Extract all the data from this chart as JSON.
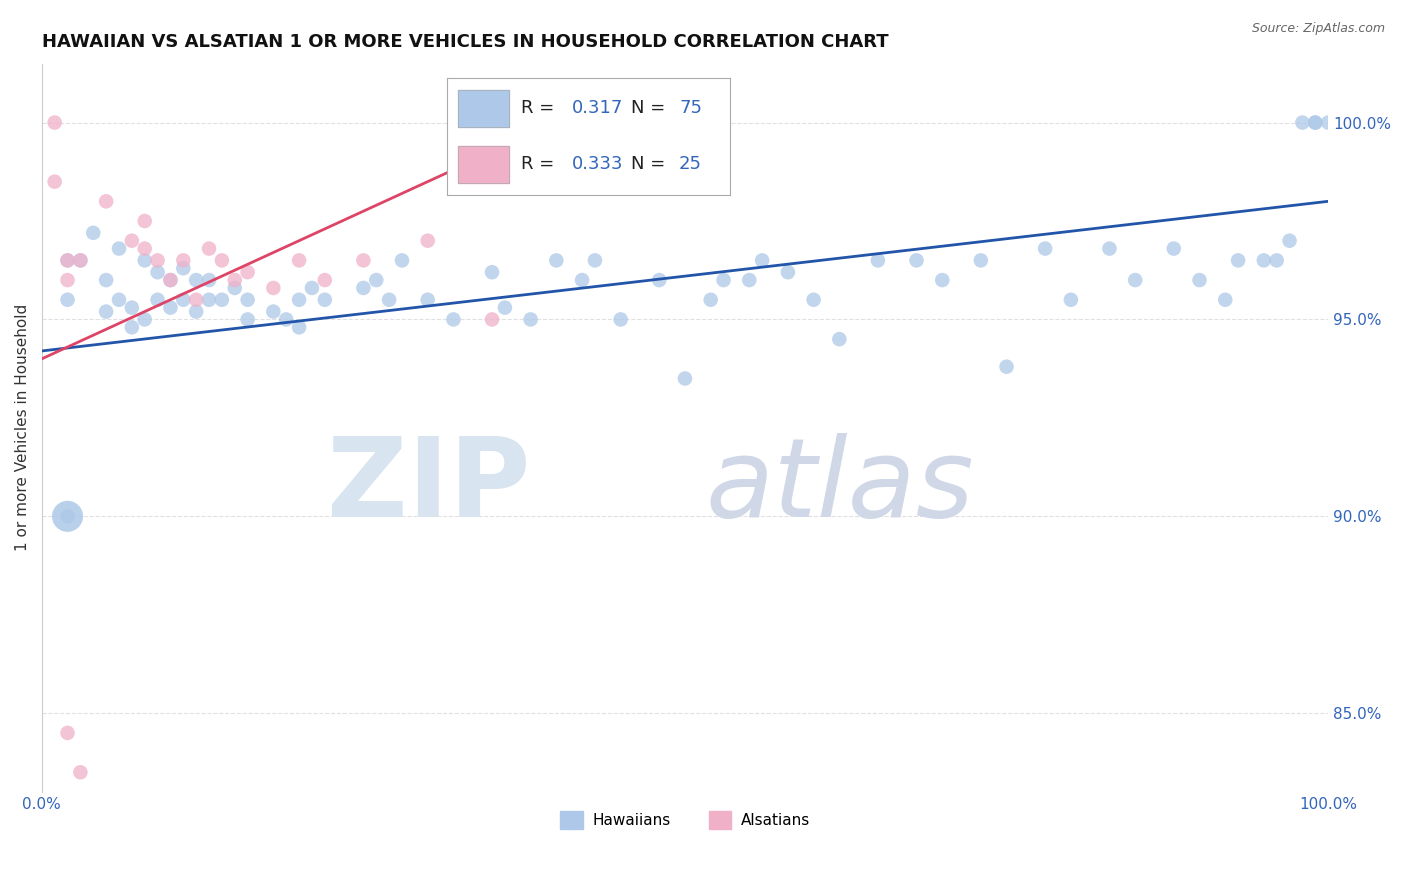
{
  "title": "HAWAIIAN VS ALSATIAN 1 OR MORE VEHICLES IN HOUSEHOLD CORRELATION CHART",
  "source": "Source: ZipAtlas.com",
  "ylabel": "1 or more Vehicles in Household",
  "xlim": [
    0,
    100
  ],
  "ylim": [
    83,
    101.5
  ],
  "yticks": [
    85.0,
    90.0,
    95.0,
    100.0
  ],
  "xticks": [
    0,
    100
  ],
  "hawaiian_color": "#adc8e8",
  "alsatian_color": "#f0b0c8",
  "hawaiian_line_color": "#2255aa",
  "alsatian_line_color": "#dd4466",
  "background_color": "#ffffff",
  "grid_color": "#e0e0e0",
  "title_fontsize": 13,
  "axis_label_fontsize": 11,
  "tick_fontsize": 11,
  "legend_fontsize": 13,
  "hawaiian_points_x": [
    2,
    2,
    2,
    3,
    4,
    5,
    5,
    6,
    6,
    7,
    7,
    8,
    8,
    9,
    9,
    10,
    10,
    11,
    11,
    12,
    12,
    13,
    13,
    14,
    15,
    16,
    16,
    18,
    19,
    20,
    20,
    21,
    22,
    25,
    26,
    27,
    28,
    30,
    32,
    35,
    36,
    38,
    40,
    42,
    43,
    45,
    48,
    50,
    52,
    53,
    55,
    56,
    58,
    60,
    62,
    65,
    68,
    70,
    73,
    75,
    78,
    80,
    83,
    85,
    88,
    90,
    92,
    93,
    95,
    96,
    97,
    98,
    99,
    99,
    100
  ],
  "hawaiian_points_y": [
    90.0,
    95.5,
    96.5,
    96.5,
    97.2,
    96.0,
    95.2,
    96.8,
    95.5,
    95.3,
    94.8,
    96.5,
    95.0,
    96.2,
    95.5,
    96.0,
    95.3,
    96.3,
    95.5,
    96.0,
    95.2,
    96.0,
    95.5,
    95.5,
    95.8,
    95.5,
    95.0,
    95.2,
    95.0,
    95.5,
    94.8,
    95.8,
    95.5,
    95.8,
    96.0,
    95.5,
    96.5,
    95.5,
    95.0,
    96.2,
    95.3,
    95.0,
    96.5,
    96.0,
    96.5,
    95.0,
    96.0,
    93.5,
    95.5,
    96.0,
    96.0,
    96.5,
    96.2,
    95.5,
    94.5,
    96.5,
    96.5,
    96.0,
    96.5,
    93.8,
    96.8,
    95.5,
    96.8,
    96.0,
    96.8,
    96.0,
    95.5,
    96.5,
    96.5,
    96.5,
    97.0,
    100.0,
    100.0,
    100.0,
    100.0
  ],
  "alsatian_points_x": [
    1,
    1,
    2,
    2,
    3,
    5,
    7,
    8,
    8,
    9,
    10,
    11,
    12,
    13,
    14,
    15,
    16,
    18,
    20,
    22,
    25,
    30,
    35,
    2,
    3
  ],
  "alsatian_points_y": [
    100.0,
    98.5,
    96.5,
    84.5,
    83.5,
    98.0,
    97.0,
    96.8,
    97.5,
    96.5,
    96.0,
    96.5,
    95.5,
    96.8,
    96.5,
    96.0,
    96.2,
    95.8,
    96.5,
    96.0,
    96.5,
    97.0,
    95.0,
    96.0,
    96.5
  ],
  "hawaiian_large_dot_x": 2,
  "hawaiian_large_dot_y": 90.0
}
